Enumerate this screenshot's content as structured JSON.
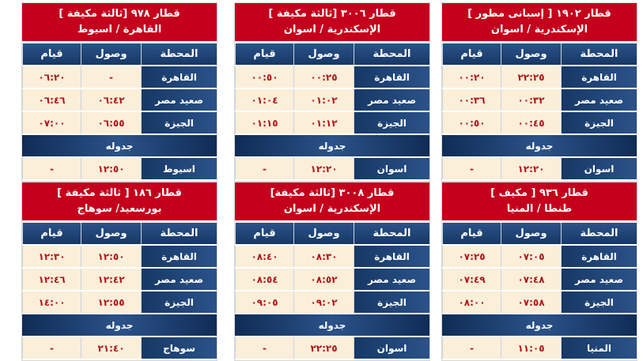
{
  "columns": {
    "station": "المحطة",
    "arrival": "وصول",
    "departure": "قيام"
  },
  "schedule_label": "جدوله",
  "colors": {
    "header_red": "#c4001c",
    "navy": "#1b3f73",
    "cream": "#fbefd9",
    "time_red": "#b3131a"
  },
  "trains": [
    {
      "title": "قطار ١٩٠٢ [ إسبانى مطور ]",
      "route": "الإسكندرية / اسوان",
      "stops": [
        {
          "station": "القاهرة",
          "arrival": "٢٢:٢٥",
          "departure": "٠٠:٢٠"
        },
        {
          "station": "صعيد مصر",
          "arrival": "٠٠:٣٢",
          "departure": "٠٠:٣٦"
        },
        {
          "station": "الجيزة",
          "arrival": "٠٠:٤٥",
          "departure": "٠٠:٥٠"
        }
      ],
      "final": {
        "station": "اسوان",
        "arrival": "١٢:٢٠",
        "departure": "-"
      }
    },
    {
      "title": "قطار ٣٠٠٦ [ثالثة مكيفة ]",
      "route": "الإسكندرية / اسوان",
      "stops": [
        {
          "station": "القاهرة",
          "arrival": "٠٠:٢٥",
          "departure": "٠٠:٥٠"
        },
        {
          "station": "صعيد مصر",
          "arrival": "٠١:٠٢",
          "departure": "٠١:٠٤"
        },
        {
          "station": "الجيزة",
          "arrival": "٠١:١٢",
          "departure": "٠١:١٥"
        }
      ],
      "final": {
        "station": "اسوان",
        "arrival": "١٢:٢٠",
        "departure": "-"
      }
    },
    {
      "title": "قطار ٩٧٨ [ثالثة مكيفة ]",
      "route": "القاهرة / اسيوط",
      "stops": [
        {
          "station": "القاهرة",
          "arrival": "-",
          "departure": "٠٦:٢٠"
        },
        {
          "station": "صعيد مصر",
          "arrival": "٠٦:٤٢",
          "departure": "٠٦:٤٦"
        },
        {
          "station": "الجيزة",
          "arrival": "٠٦:٥٥",
          "departure": "٠٧:٠٠"
        }
      ],
      "final": {
        "station": "اسيوط",
        "arrival": "١٢:٥٠",
        "departure": "-"
      }
    },
    {
      "title": "قطار ٩٣٦ [ مكيف ]",
      "route": "طنطا / المنيا",
      "stops": [
        {
          "station": "القاهرة",
          "arrival": "٠٧:٠٥",
          "departure": "٠٧:٢٥"
        },
        {
          "station": "صعيد مصر",
          "arrival": "٠٧:٤٨",
          "departure": "٠٧:٤٩"
        },
        {
          "station": "الجيزة",
          "arrival": "٠٧:٥٨",
          "departure": "٠٨:٠٠"
        }
      ],
      "final": {
        "station": "المنيا",
        "arrival": "١١:٠٥",
        "departure": "-"
      }
    },
    {
      "title": "قطار ٣٠٠٨ [ثالثة مكيفة]",
      "route": "الإسكندرية / اسوان",
      "stops": [
        {
          "station": "القاهرة",
          "arrival": "٠٨:٣٠",
          "departure": "٠٨:٤٠"
        },
        {
          "station": "صعيد مصر",
          "arrival": "٠٨:٥٢",
          "departure": "٠٨:٥٤"
        },
        {
          "station": "الجيزة",
          "arrival": "٠٩:٠٢",
          "departure": "٠٩:٠٥"
        }
      ],
      "final": {
        "station": "اسوان",
        "arrival": "٢٢:٢٥",
        "departure": "-"
      }
    },
    {
      "title": "قطار ١٨٦ [ ثالثة مكيفة ]",
      "route": "بورسعيد/ سوهاج",
      "stops": [
        {
          "station": "القاهرة",
          "arrival": "١٢:٥٠",
          "departure": "١٢:٣٠"
        },
        {
          "station": "صعيد مصر",
          "arrival": "١٢:٤٢",
          "departure": "١٢:٤٦"
        },
        {
          "station": "الجيزة",
          "arrival": "١٢:٥٥",
          "departure": "١٤:٠٠"
        }
      ],
      "final": {
        "station": "سوهاج",
        "arrival": "٢١:٤٠",
        "departure": "-"
      }
    }
  ]
}
